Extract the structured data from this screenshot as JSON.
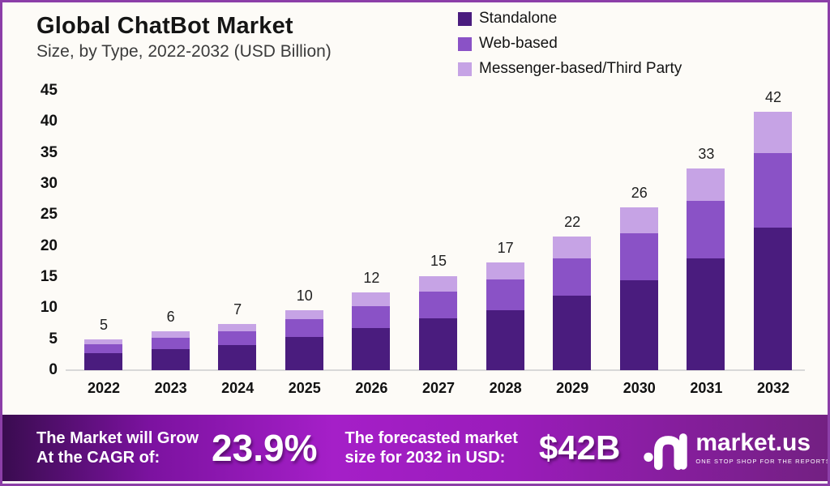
{
  "title": "Global ChatBot Market",
  "subtitle": "Size, by Type, 2022-2032 (USD Billion)",
  "legend": {
    "items": [
      {
        "label": "Standalone",
        "color": "#4a1c7e"
      },
      {
        "label": "Web-based",
        "color": "#8a52c6"
      },
      {
        "label": "Messenger-based/Third Party",
        "color": "#c6a3e5"
      }
    ]
  },
  "chart_data": {
    "type": "bar",
    "stacked": true,
    "title": "Global ChatBot Market Size, by Type, 2022-2032 (USD Billion)",
    "categories": [
      "2022",
      "2023",
      "2024",
      "2025",
      "2026",
      "2027",
      "2028",
      "2029",
      "2030",
      "2031",
      "2032"
    ],
    "series": [
      {
        "name": "Standalone",
        "color": "#4a1c7e",
        "values": [
          2.8,
          3.4,
          4.1,
          5.3,
          6.8,
          8.4,
          9.7,
          12,
          14.5,
          18,
          23
        ]
      },
      {
        "name": "Web-based",
        "color": "#8a52c6",
        "values": [
          1.4,
          1.8,
          2.2,
          2.9,
          3.5,
          4.3,
          4.9,
          6,
          7.5,
          9.2,
          12
        ]
      },
      {
        "name": "Messenger-based/Third Party",
        "color": "#c6a3e5",
        "values": [
          0.8,
          1.0,
          1.2,
          1.5,
          2.2,
          2.5,
          2.8,
          3.5,
          4.2,
          5.3,
          6.6
        ]
      }
    ],
    "totals": [
      "5",
      "6",
      "7",
      "10",
      "12",
      "15",
      "17",
      "22",
      "26",
      "33",
      "42"
    ],
    "yticks": [
      0,
      5,
      10,
      15,
      20,
      25,
      30,
      35,
      40,
      45
    ],
    "ylim": [
      0,
      45
    ],
    "xlabel": "",
    "ylabel": "",
    "grid": false,
    "legend_position": "top-right"
  },
  "banner": {
    "cagr_text_line1": "The Market will Grow",
    "cagr_text_line2": "At the CAGR of:",
    "cagr_value": "23.9%",
    "forecast_text_line1": "The forecasted market",
    "forecast_text_line2": "size for 2032 in USD:",
    "forecast_value": "$42B",
    "brand": {
      "name": "market.us",
      "tagline": "ONE STOP SHOP FOR THE REPORTS"
    }
  },
  "colors": {
    "border": "#8c3ea8",
    "axis_line": "#d8d8d8",
    "banner_gradient_left": "#3a0c50",
    "banner_gradient_mid": "#a51fc8",
    "banner_gradient_right": "#732082"
  }
}
